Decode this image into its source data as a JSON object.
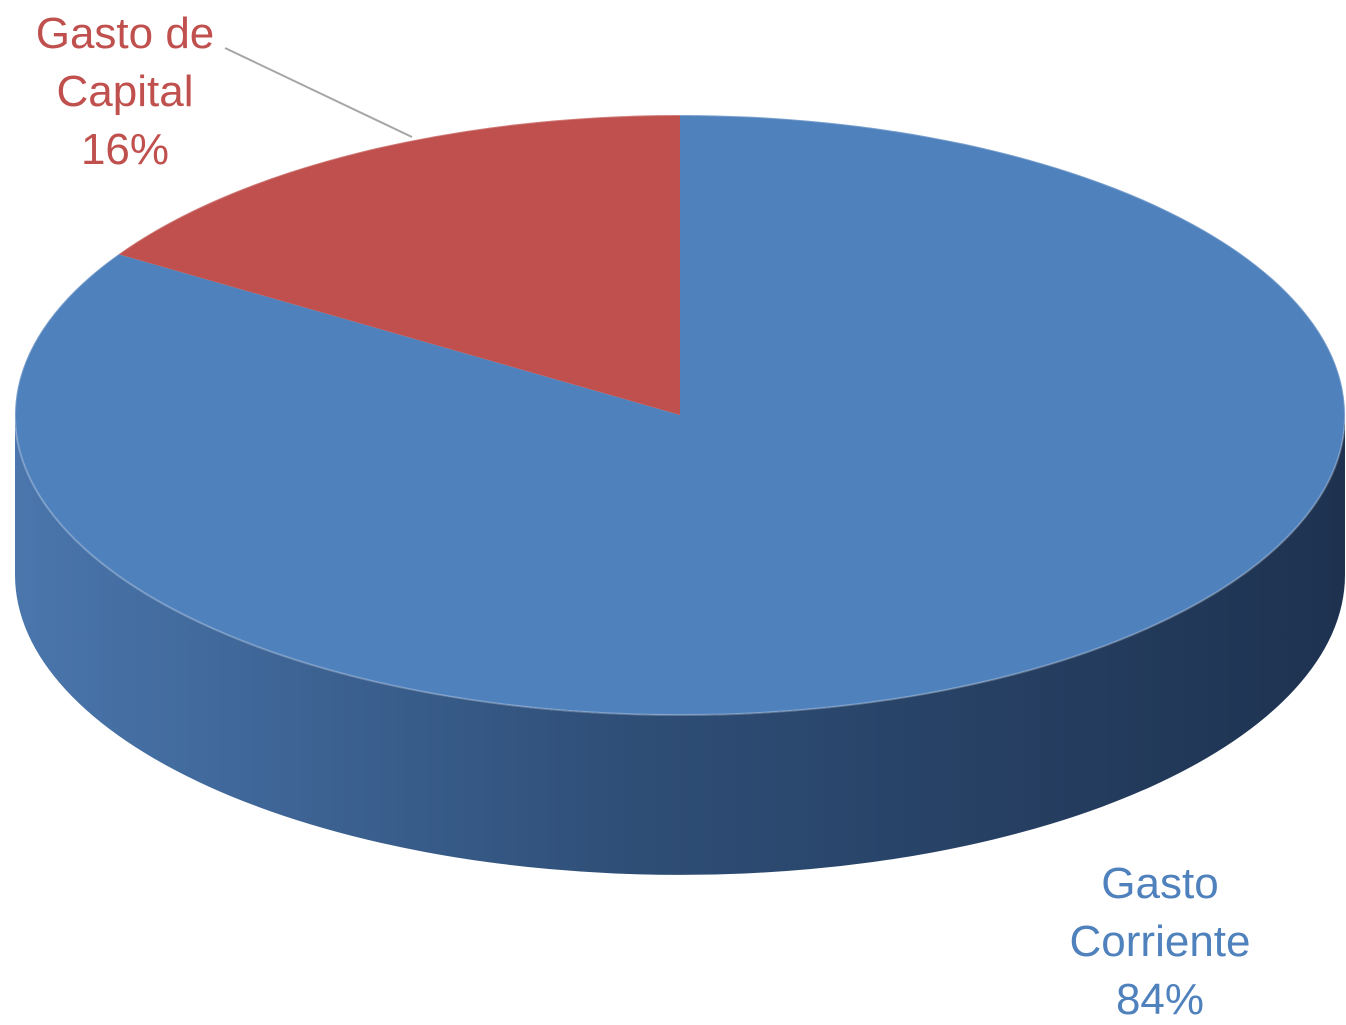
{
  "chart_data": {
    "type": "pie",
    "categories": [
      "Gasto Corriente",
      "Gasto de Capital"
    ],
    "values": [
      84,
      16
    ],
    "value_labels": [
      "84%",
      "16%"
    ],
    "colors": [
      "#4f81bd",
      "#c0504d"
    ],
    "start_angle": 90,
    "direction": "clockwise",
    "style": "3d"
  }
}
